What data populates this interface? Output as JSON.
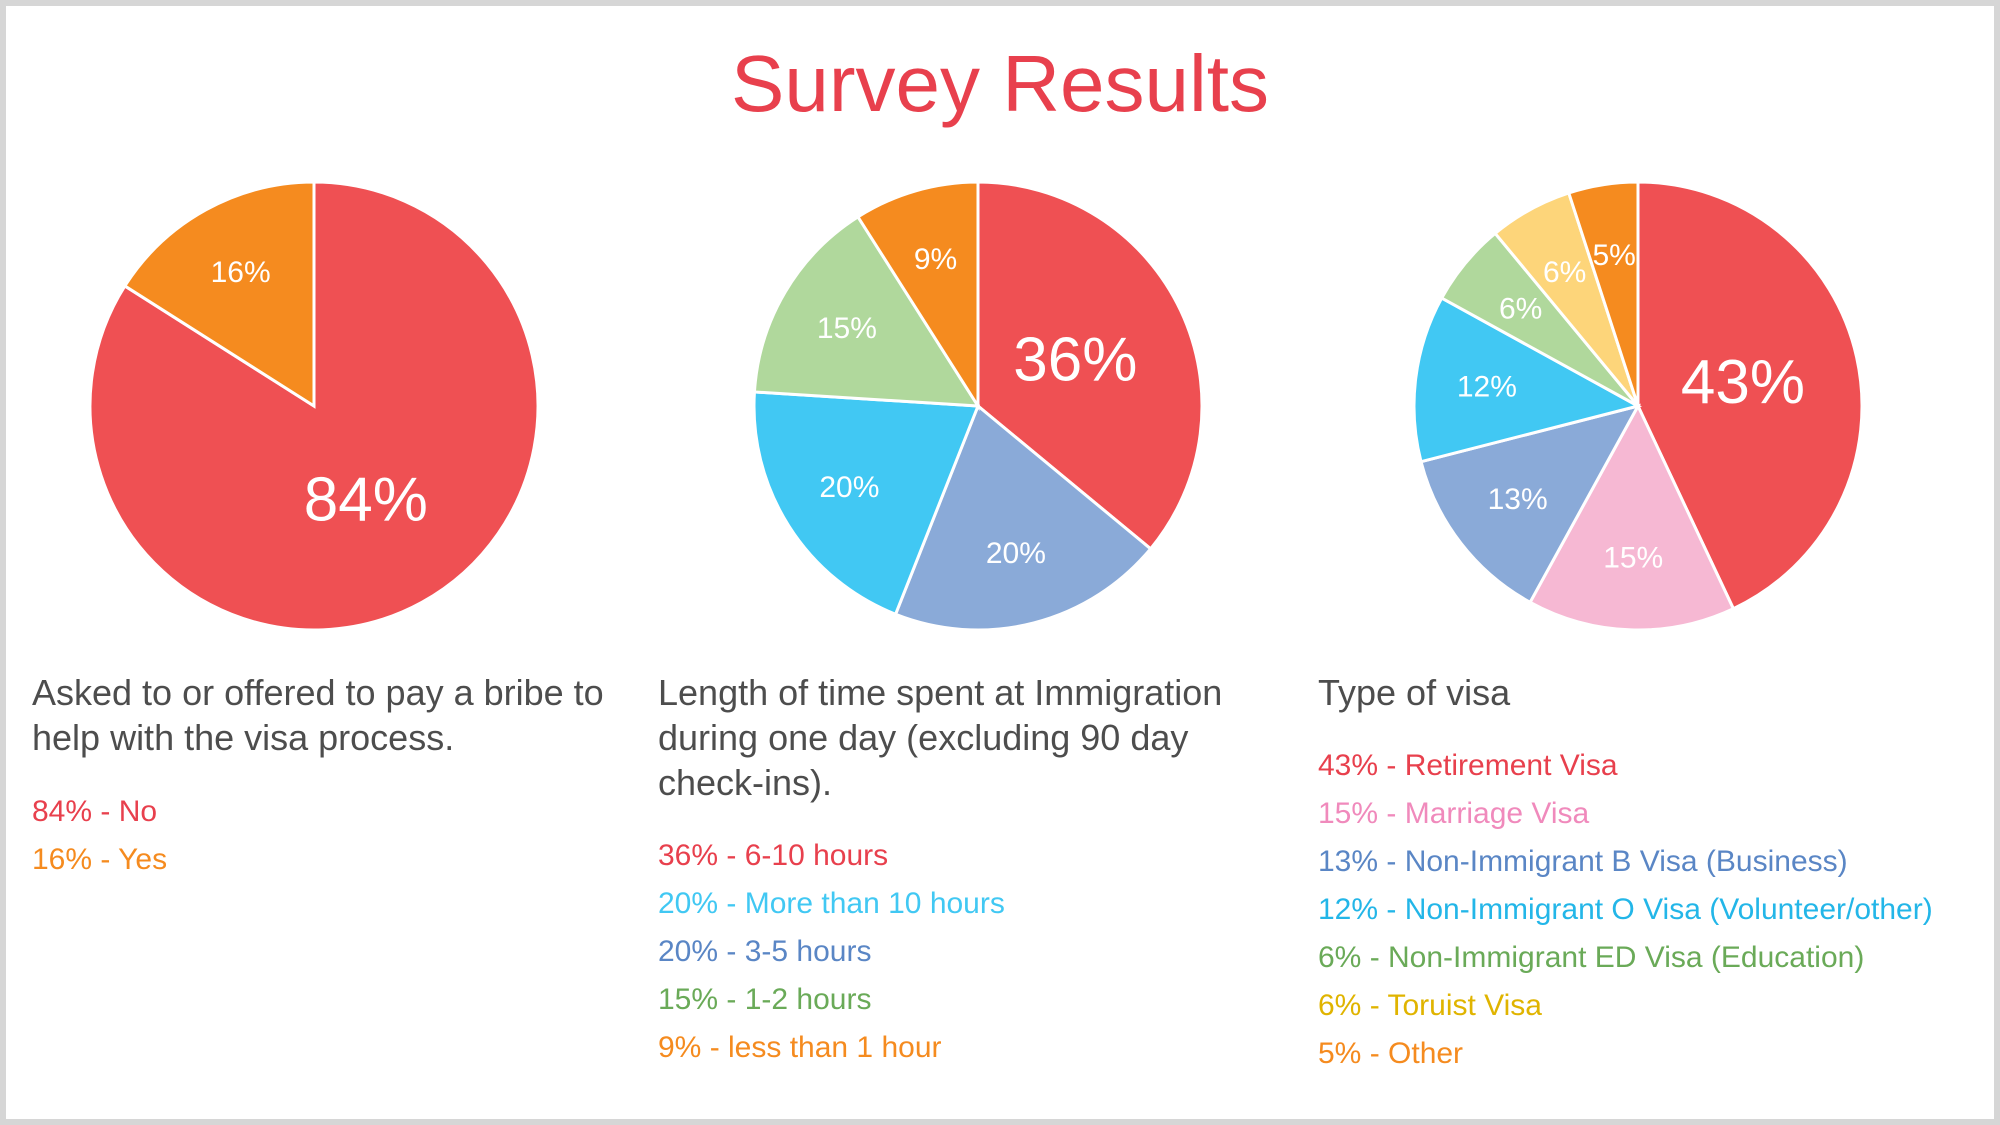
{
  "title": "Survey Results",
  "chart_data": [
    {
      "type": "pie",
      "caption": "Asked to or offered to pay a bribe to help with the visa process.",
      "slices": [
        {
          "value": 84,
          "label": "84%",
          "legend": "84% - No",
          "color": "#ef5053"
        },
        {
          "value": 16,
          "label": "16%",
          "legend": "16% - Yes",
          "color": "#f58b1f"
        }
      ]
    },
    {
      "type": "pie",
      "caption": "Length of time spent at Immigration during one day (excluding 90 day check-ins).",
      "slices": [
        {
          "value": 36,
          "label": "36%",
          "legend": "36% - 6-10 hours",
          "color": "#ef5053"
        },
        {
          "value": 20,
          "label": "20%",
          "legend": "20% - 3-5 hours",
          "color": "#8aaad8"
        },
        {
          "value": 20,
          "label": "20%",
          "legend": "20% - More than 10 hours",
          "color": "#41c8f3"
        },
        {
          "value": 15,
          "label": "15%",
          "legend": "15% - 1-2 hours",
          "color": "#b0d89c"
        },
        {
          "value": 9,
          "label": "9%",
          "legend": "9%   - less than 1 hour",
          "color": "#f58b1f"
        }
      ],
      "legend_order": [
        0,
        2,
        1,
        3,
        4
      ]
    },
    {
      "type": "pie",
      "caption": "Type of visa",
      "slices": [
        {
          "value": 43,
          "label": "43%",
          "legend": "43% - Retirement Visa",
          "color": "#ef5053"
        },
        {
          "value": 15,
          "label": "15%",
          "legend": "15% - Marriage Visa",
          "color": "#f6b8d3"
        },
        {
          "value": 13,
          "label": "13%",
          "legend": "13% - Non-Immigrant B Visa (Business)",
          "color": "#8aaad8"
        },
        {
          "value": 12,
          "label": "12%",
          "legend": "12% - Non-Immigrant O Visa (Volunteer/other)",
          "color": "#41c8f3"
        },
        {
          "value": 6,
          "label": "6%",
          "legend": "6%  - Non-Immigrant ED Visa (Education)",
          "color": "#b0d89c"
        },
        {
          "value": 6,
          "label": "6%",
          "legend": "6%  - Toruist Visa",
          "color": "#fdd57a"
        },
        {
          "value": 5,
          "label": "5%",
          "legend": "5%  - Other",
          "color": "#f58b1f"
        }
      ]
    }
  ],
  "legend_colors": [
    [
      "#e8404d",
      "#f58b1f"
    ],
    [
      "#e8404d",
      "#41c8f3",
      "#5a86c5",
      "#6aaa58",
      "#f58b1f"
    ],
    [
      "#e8404d",
      "#f08abc",
      "#5a86c5",
      "#23b6e8",
      "#6aaa58",
      "#e0b400",
      "#f58b1f"
    ]
  ]
}
